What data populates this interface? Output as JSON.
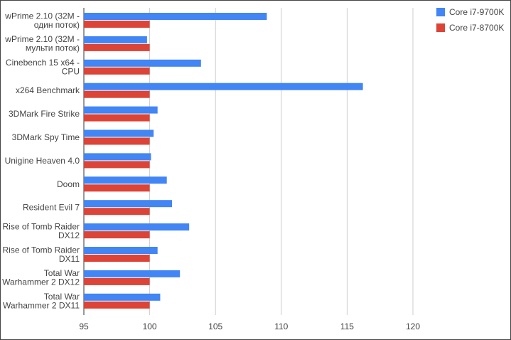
{
  "chart_data": {
    "type": "bar",
    "orientation": "horizontal",
    "categories": [
      [
        "wPrime 2.10 (32M -",
        "один поток)"
      ],
      [
        "wPrime 2.10 (32M -",
        "мульти поток)"
      ],
      [
        "Cinebench 15 x64 -",
        "CPU"
      ],
      [
        "x264 Benchmark"
      ],
      [
        "3DMark Fire Strike"
      ],
      [
        "3DMark Spy Time"
      ],
      [
        "Unigine Heaven 4.0"
      ],
      [
        "Doom"
      ],
      [
        "Resident Evil 7"
      ],
      [
        "Rise of Tomb Raider",
        "DX12"
      ],
      [
        "Rise of Tomb Raider",
        "DX11"
      ],
      [
        "Total War",
        "Warhammer 2 DX12"
      ],
      [
        "Total War",
        "Warhammer 2 DX11"
      ]
    ],
    "series": [
      {
        "name": "Core i7-9700K",
        "color": "#4285f4",
        "values": [
          108.9,
          99.8,
          103.9,
          116.2,
          100.6,
          100.3,
          100.1,
          101.3,
          101.7,
          103.0,
          100.6,
          102.3,
          100.8
        ]
      },
      {
        "name": "Core i7-8700K",
        "color": "#db4437",
        "values": [
          100,
          100,
          100,
          100,
          100,
          100,
          100,
          100,
          100,
          100,
          100,
          100,
          100
        ]
      }
    ],
    "xlim": [
      95,
      122
    ],
    "xticks": [
      "95",
      "100",
      "105",
      "110",
      "115",
      "120"
    ],
    "grid": true,
    "legend_position": "top-right",
    "title": "",
    "xlabel": "",
    "ylabel": ""
  }
}
